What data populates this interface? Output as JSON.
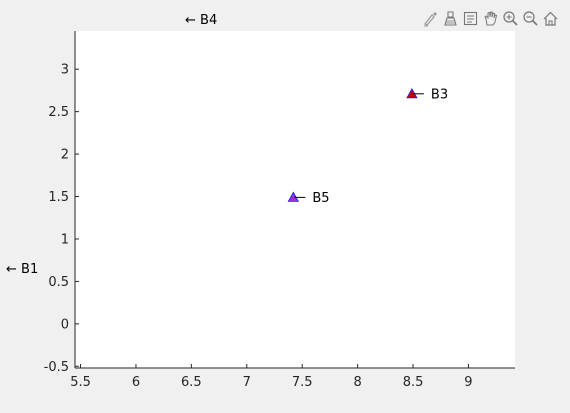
{
  "toolbar": {
    "icons": [
      "brush-icon",
      "eraser-icon",
      "data-tips-icon",
      "pan-icon",
      "zoom-in-icon",
      "zoom-out-icon",
      "home-icon"
    ]
  },
  "colors": {
    "background": "#f0f0f0",
    "axes_background": "#ffffff",
    "axis": "#262626",
    "marker_b3": "#cc0000",
    "marker_b5": "#9933cc"
  },
  "chart_data": {
    "type": "scatter",
    "xlim": [
      5.45,
      9.42
    ],
    "ylim": [
      -0.52,
      3.45
    ],
    "xticks": [
      5.5,
      6,
      6.5,
      7,
      7.5,
      8,
      8.5,
      9
    ],
    "xtick_labels": [
      "5.5",
      "6",
      "6.5",
      "7",
      "7.5",
      "8",
      "8.5",
      "9"
    ],
    "yticks": [
      -0.5,
      0,
      0.5,
      1,
      1.5,
      2,
      2.5,
      3
    ],
    "ytick_labels": [
      "-0.5",
      "0",
      "0.5",
      "1",
      "1.5",
      "2",
      "2.5",
      "3"
    ],
    "grid": false,
    "points": [
      {
        "label": "B3",
        "x": 8.49,
        "y": 2.71,
        "color": "#cc0000",
        "marker": "triangle"
      },
      {
        "label": "B5",
        "x": 7.42,
        "y": 1.49,
        "color": "#9933cc",
        "marker": "triangle"
      }
    ],
    "offscreen_annotations": [
      {
        "text": "← B4",
        "placement": "top"
      },
      {
        "text": "← B1",
        "placement": "left"
      }
    ]
  }
}
